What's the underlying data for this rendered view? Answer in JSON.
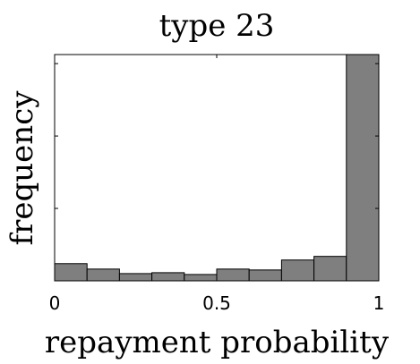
{
  "chart_data": {
    "type": "bar",
    "title": "type 23",
    "xlabel": "repayment probability",
    "ylabel": "frequency",
    "xlim": [
      0,
      1
    ],
    "x_ticks": [
      "0",
      "0.5",
      "1"
    ],
    "x_tick_values": [
      0,
      0.5,
      1
    ],
    "bin_edges": [
      0,
      0.1,
      0.2,
      0.3,
      0.4,
      0.5,
      0.6,
      0.7,
      0.8,
      0.9,
      1.0
    ],
    "values": [
      19,
      13,
      8,
      9,
      7,
      13,
      12,
      23,
      27,
      250
    ],
    "ylim": [
      0,
      250
    ],
    "y_tick_values": [
      80,
      160,
      240
    ],
    "y_ticks_labeled": false,
    "colors": {
      "bar": "#7f7f7f",
      "edge": "#000000"
    }
  }
}
